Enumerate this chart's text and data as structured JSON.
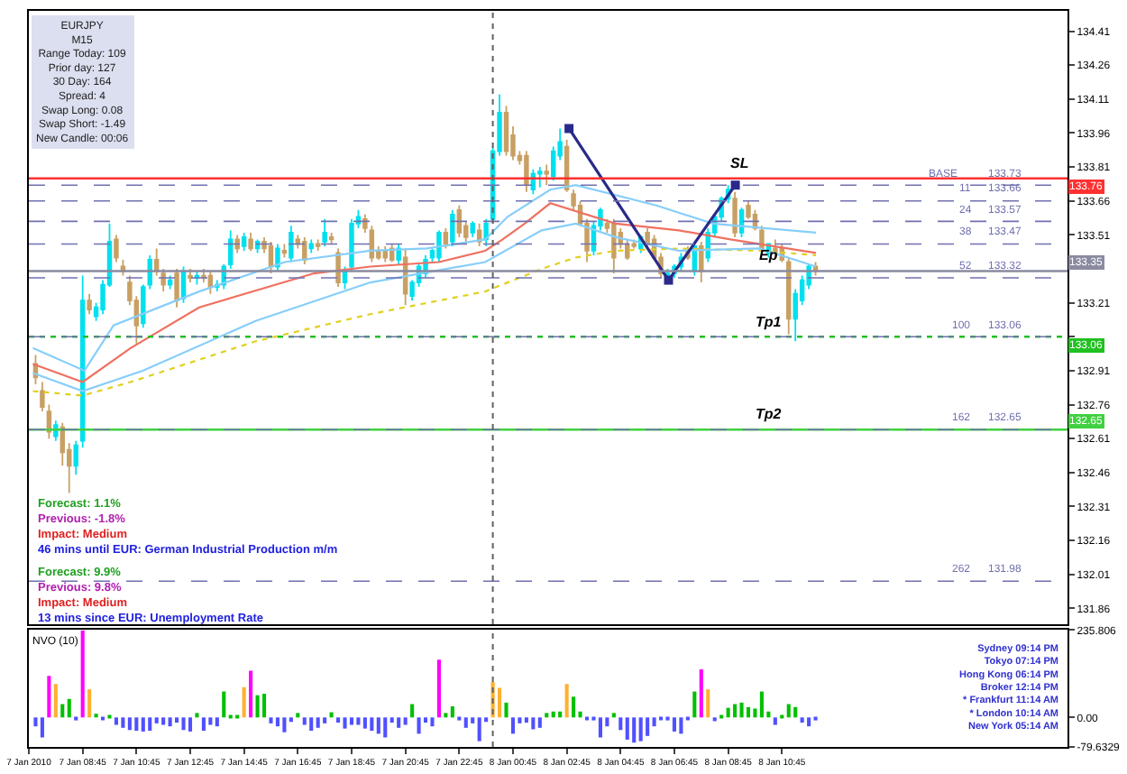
{
  "chart_data": [
    {
      "type": "candlestick",
      "x": [
        "2010-01-07T07:00",
        "2010-01-07T07:15",
        "2010-01-07T07:30",
        "2010-01-07T07:45",
        "2010-01-07T08:00",
        "2010-01-07T08:15",
        "2010-01-07T08:30",
        "2010-01-07T08:45",
        "2010-01-07T09:00",
        "2010-01-07T09:15",
        "2010-01-07T09:30",
        "2010-01-07T09:45",
        "2010-01-07T10:00",
        "2010-01-07T10:15",
        "2010-01-07T10:30",
        "2010-01-07T10:45",
        "2010-01-07T11:00",
        "2010-01-07T11:15",
        "2010-01-07T11:30",
        "2010-01-07T11:45",
        "2010-01-07T12:00",
        "2010-01-07T12:15",
        "2010-01-07T12:30",
        "2010-01-07T12:45",
        "2010-01-07T13:00",
        "2010-01-07T13:15",
        "2010-01-07T13:30",
        "2010-01-07T13:45",
        "2010-01-07T14:00",
        "2010-01-07T14:15",
        "2010-01-07T14:30",
        "2010-01-07T14:45",
        "2010-01-07T15:00",
        "2010-01-07T15:15",
        "2010-01-07T15:30",
        "2010-01-07T15:45",
        "2010-01-07T16:00",
        "2010-01-07T16:15",
        "2010-01-07T16:30",
        "2010-01-07T16:45",
        "2010-01-07T17:00",
        "2010-01-07T17:15",
        "2010-01-07T17:30",
        "2010-01-07T17:45",
        "2010-01-07T18:00",
        "2010-01-07T18:15",
        "2010-01-07T18:30",
        "2010-01-07T18:45",
        "2010-01-07T19:00",
        "2010-01-07T19:15",
        "2010-01-07T19:30",
        "2010-01-07T19:45",
        "2010-01-07T20:00",
        "2010-01-07T20:15",
        "2010-01-07T20:30",
        "2010-01-07T20:45",
        "2010-01-07T21:00",
        "2010-01-07T21:15",
        "2010-01-07T21:30",
        "2010-01-07T21:45",
        "2010-01-07T22:00",
        "2010-01-07T22:15",
        "2010-01-07T22:30",
        "2010-01-07T22:45",
        "2010-01-07T23:00",
        "2010-01-07T23:15",
        "2010-01-07T23:30",
        "2010-01-07T23:45",
        "2010-01-08T00:00",
        "2010-01-08T00:15",
        "2010-01-08T00:30",
        "2010-01-08T00:45",
        "2010-01-08T01:00",
        "2010-01-08T01:15",
        "2010-01-08T01:30",
        "2010-01-08T01:45",
        "2010-01-08T02:00",
        "2010-01-08T02:15",
        "2010-01-08T02:30",
        "2010-01-08T02:45",
        "2010-01-08T03:00",
        "2010-01-08T03:15",
        "2010-01-08T03:30",
        "2010-01-08T03:45",
        "2010-01-08T04:00",
        "2010-01-08T04:15",
        "2010-01-08T04:30",
        "2010-01-08T04:45",
        "2010-01-08T05:00",
        "2010-01-08T05:15",
        "2010-01-08T05:30",
        "2010-01-08T05:45",
        "2010-01-08T06:00",
        "2010-01-08T06:15",
        "2010-01-08T06:30",
        "2010-01-08T06:45",
        "2010-01-08T07:00",
        "2010-01-08T07:15",
        "2010-01-08T07:30",
        "2010-01-08T07:45",
        "2010-01-08T08:00",
        "2010-01-08T08:15",
        "2010-01-08T08:30",
        "2010-01-08T08:45",
        "2010-01-08T09:00",
        "2010-01-08T09:15",
        "2010-01-08T09:30",
        "2010-01-08T09:45",
        "2010-01-08T10:00",
        "2010-01-08T10:15",
        "2010-01-08T10:30",
        "2010-01-08T10:45",
        "2010-01-08T11:00",
        "2010-01-08T11:15",
        "2010-01-08T11:30",
        "2010-01-08T11:45",
        "2010-01-08T12:00"
      ],
      "ohlc": [
        [
          132.94,
          132.98,
          132.85,
          132.88
        ],
        [
          132.82,
          132.86,
          132.73,
          132.75
        ],
        [
          132.73,
          132.76,
          132.61,
          132.64
        ],
        [
          132.62,
          132.69,
          132.6,
          132.67
        ],
        [
          132.66,
          132.68,
          132.49,
          132.55
        ],
        [
          132.56,
          132.59,
          132.37,
          132.49
        ],
        [
          132.49,
          132.6,
          132.45,
          132.58
        ],
        [
          132.6,
          133.33,
          132.57,
          133.22
        ],
        [
          133.22,
          133.25,
          133.16,
          133.18
        ],
        [
          133.15,
          133.21,
          133.13,
          133.19
        ],
        [
          133.18,
          133.31,
          133.16,
          133.29
        ],
        [
          133.29,
          133.56,
          133.28,
          133.48
        ],
        [
          133.49,
          133.51,
          133.39,
          133.41
        ],
        [
          133.37,
          133.4,
          133.33,
          133.35
        ],
        [
          133.3,
          133.33,
          133.2,
          133.22
        ],
        [
          133.22,
          133.24,
          133.03,
          133.11
        ],
        [
          133.12,
          133.29,
          133.1,
          133.28
        ],
        [
          133.29,
          133.42,
          133.27,
          133.4
        ],
        [
          133.4,
          133.45,
          133.33,
          133.35
        ],
        [
          133.34,
          133.36,
          133.26,
          133.29
        ],
        [
          133.29,
          133.33,
          133.27,
          133.31
        ],
        [
          133.34,
          133.36,
          133.19,
          133.22
        ],
        [
          133.23,
          133.37,
          133.21,
          133.35
        ],
        [
          133.33,
          133.36,
          133.3,
          133.32
        ],
        [
          133.32,
          133.35,
          133.29,
          133.33
        ],
        [
          133.33,
          133.36,
          133.3,
          133.32
        ],
        [
          133.33,
          133.35,
          133.25,
          133.28
        ],
        [
          133.28,
          133.31,
          133.26,
          133.29
        ],
        [
          133.29,
          133.38,
          133.27,
          133.37
        ],
        [
          133.38,
          133.53,
          133.36,
          133.49
        ],
        [
          133.49,
          133.51,
          133.43,
          133.45
        ],
        [
          133.46,
          133.52,
          133.44,
          133.5
        ],
        [
          133.49,
          133.52,
          133.44,
          133.45
        ],
        [
          133.45,
          133.49,
          133.43,
          133.48
        ],
        [
          133.48,
          133.5,
          133.43,
          133.45
        ],
        [
          133.46,
          133.48,
          133.34,
          133.37
        ],
        [
          133.37,
          133.47,
          133.35,
          133.45
        ],
        [
          133.44,
          133.47,
          133.41,
          133.43
        ],
        [
          133.41,
          133.55,
          133.39,
          133.52
        ],
        [
          133.49,
          133.51,
          133.45,
          133.47
        ],
        [
          133.48,
          133.5,
          133.38,
          133.4
        ],
        [
          133.45,
          133.49,
          133.43,
          133.47
        ],
        [
          133.47,
          133.49,
          133.44,
          133.46
        ],
        [
          133.48,
          133.58,
          133.46,
          133.52
        ],
        [
          133.5,
          133.52,
          133.47,
          133.49
        ],
        [
          133.43,
          133.45,
          133.28,
          133.3
        ],
        [
          133.3,
          133.37,
          133.27,
          133.35
        ],
        [
          133.37,
          133.58,
          133.35,
          133.56
        ],
        [
          133.56,
          133.62,
          133.54,
          133.59
        ],
        [
          133.58,
          133.6,
          133.52,
          133.54
        ],
        [
          133.53,
          133.55,
          133.39,
          133.41
        ],
        [
          133.44,
          133.46,
          133.4,
          133.41
        ],
        [
          133.44,
          133.46,
          133.39,
          133.41
        ],
        [
          133.45,
          133.47,
          133.39,
          133.4
        ],
        [
          133.4,
          133.47,
          133.38,
          133.45
        ],
        [
          133.41,
          133.45,
          133.2,
          133.25
        ],
        [
          133.24,
          133.31,
          133.22,
          133.3
        ],
        [
          133.3,
          133.38,
          133.28,
          133.37
        ],
        [
          133.34,
          133.42,
          133.32,
          133.4
        ],
        [
          133.41,
          133.45,
          133.39,
          133.44
        ],
        [
          133.41,
          133.53,
          133.39,
          133.52
        ],
        [
          133.52,
          133.54,
          133.45,
          133.47
        ],
        [
          133.48,
          133.62,
          133.46,
          133.6
        ],
        [
          133.62,
          133.64,
          133.5,
          133.52
        ],
        [
          133.55,
          133.57,
          133.48,
          133.5
        ],
        [
          133.52,
          133.57,
          133.5,
          133.56
        ],
        [
          133.53,
          133.56,
          133.46,
          133.48
        ],
        [
          133.49,
          133.58,
          133.46,
          133.56
        ],
        [
          133.58,
          133.9,
          133.56,
          133.88
        ],
        [
          133.88,
          134.13,
          133.86,
          134.05
        ],
        [
          134.05,
          134.08,
          133.86,
          133.88
        ],
        [
          133.95,
          133.99,
          133.84,
          133.86
        ],
        [
          133.86,
          133.88,
          133.82,
          133.84
        ],
        [
          133.86,
          133.88,
          133.7,
          133.73
        ],
        [
          133.71,
          133.8,
          133.69,
          133.78
        ],
        [
          133.78,
          133.81,
          133.72,
          133.79
        ],
        [
          133.79,
          133.82,
          133.73,
          133.78
        ],
        [
          133.77,
          133.9,
          133.75,
          133.88
        ],
        [
          133.86,
          133.98,
          133.84,
          133.92
        ],
        [
          133.9,
          133.93,
          133.7,
          133.71
        ],
        [
          133.69,
          133.71,
          133.62,
          133.64
        ],
        [
          133.64,
          133.66,
          133.55,
          133.56
        ],
        [
          133.56,
          133.58,
          133.39,
          133.44
        ],
        [
          133.44,
          133.57,
          133.42,
          133.55
        ],
        [
          133.55,
          133.63,
          133.53,
          133.62
        ],
        [
          133.56,
          133.58,
          133.52,
          133.54
        ],
        [
          133.56,
          133.58,
          133.34,
          133.41
        ],
        [
          133.52,
          133.54,
          133.45,
          133.47
        ],
        [
          133.47,
          133.49,
          133.4,
          133.41
        ],
        [
          133.47,
          133.49,
          133.45,
          133.46
        ],
        [
          133.45,
          133.51,
          133.43,
          133.5
        ],
        [
          133.52,
          133.54,
          133.45,
          133.47
        ],
        [
          133.49,
          133.51,
          133.4,
          133.41
        ],
        [
          133.41,
          133.43,
          133.32,
          133.34
        ],
        [
          133.32,
          133.36,
          133.31,
          133.34
        ],
        [
          133.34,
          133.38,
          133.32,
          133.37
        ],
        [
          133.37,
          133.43,
          133.35,
          133.41
        ],
        [
          133.44,
          133.46,
          133.4,
          133.41
        ],
        [
          133.35,
          133.47,
          133.33,
          133.46
        ],
        [
          133.46,
          133.48,
          133.3,
          133.35
        ],
        [
          133.41,
          133.54,
          133.39,
          133.52
        ],
        [
          133.52,
          133.6,
          133.5,
          133.59
        ],
        [
          133.59,
          133.68,
          133.57,
          133.67
        ],
        [
          133.67,
          133.73,
          133.65,
          133.71
        ],
        [
          133.67,
          133.7,
          133.5,
          133.52
        ],
        [
          133.52,
          133.63,
          133.5,
          133.62
        ],
        [
          133.64,
          133.66,
          133.58,
          133.59
        ],
        [
          133.6,
          133.62,
          133.53,
          133.54
        ],
        [
          133.53,
          133.55,
          133.43,
          133.45
        ],
        [
          133.43,
          133.47,
          133.41,
          133.47
        ],
        [
          133.45,
          133.49,
          133.41,
          133.43
        ],
        [
          133.45,
          133.47,
          133.39,
          133.4
        ],
        [
          133.39,
          133.41,
          133.07,
          133.14
        ],
        [
          133.14,
          133.27,
          133.04,
          133.25
        ],
        [
          133.22,
          133.33,
          133.2,
          133.31
        ],
        [
          133.29,
          133.38,
          133.27,
          133.37
        ],
        [
          133.37,
          133.39,
          133.33,
          133.35
        ]
      ],
      "colors": [
        "#c8a064",
        "#c8a064",
        "#c8a064",
        "#00e0ee",
        "#c8a064",
        "#c8a064",
        "#00e0ee",
        "#00e0ee",
        "#c8a064",
        "#00e0ee",
        "#00e0ee",
        "#00e0ee",
        "#c8a064",
        "#c8a064",
        "#c8a064",
        "#c8a064",
        "#00e0ee",
        "#00e0ee",
        "#c8a064",
        "#c8a064",
        "#00e0ee",
        "#c8a064",
        "#00e0ee",
        "#c8a064",
        "#00e0ee",
        "#c8a064",
        "#c8a064",
        "#00e0ee",
        "#00e0ee",
        "#00e0ee",
        "#c8a064",
        "#00e0ee",
        "#c8a064",
        "#00e0ee",
        "#c8a064",
        "#c8a064",
        "#00e0ee",
        "#c8a064",
        "#00e0ee",
        "#c8a064",
        "#c8a064",
        "#00e0ee",
        "#c8a064",
        "#00e0ee",
        "#c8a064",
        "#c8a064",
        "#00e0ee",
        "#00e0ee",
        "#00e0ee",
        "#c8a064",
        "#c8a064",
        "#c8a064",
        "#c8a064",
        "#c8a064",
        "#00e0ee",
        "#c8a064",
        "#00e0ee",
        "#00e0ee",
        "#00e0ee",
        "#00e0ee",
        "#00e0ee",
        "#c8a064",
        "#00e0ee",
        "#c8a064",
        "#c8a064",
        "#00e0ee",
        "#c8a064",
        "#00e0ee",
        "#00e0ee",
        "#00e0ee",
        "#c8a064",
        "#c8a064",
        "#c8a064",
        "#c8a064",
        "#00e0ee",
        "#00e0ee",
        "#c8a064",
        "#00e0ee",
        "#00e0ee",
        "#c8a064",
        "#c8a064",
        "#c8a064",
        "#c8a064",
        "#00e0ee",
        "#00e0ee",
        "#c8a064",
        "#c8a064",
        "#c8a064",
        "#c8a064",
        "#c8a064",
        "#00e0ee",
        "#c8a064",
        "#c8a064",
        "#c8a064",
        "#00e0ee",
        "#00e0ee",
        "#00e0ee",
        "#c8a064",
        "#00e0ee",
        "#c8a064",
        "#00e0ee",
        "#00e0ee",
        "#00e0ee",
        "#00e0ee",
        "#c8a064",
        "#00e0ee",
        "#c8a064",
        "#c8a064",
        "#c8a064",
        "#00e0ee",
        "#c8a064",
        "#c8a064",
        "#c8a064",
        "#00e0ee",
        "#00e0ee",
        "#00e0ee",
        "#c8a064"
      ],
      "series": [
        {
          "type": "line",
          "color": "#e0d020",
          "line_style": "dotted",
          "marker": "none",
          "x": [
            "2010-01-07T06:54",
            "2010-01-07T08:45",
            "2010-01-07T10:32",
            "2010-01-07T15:11",
            "2010-01-07T19:27",
            "2010-01-07T23:43",
            "2010-01-08T01:49",
            "2010-01-08T03:05",
            "2010-01-08T04:34",
            "2010-01-08T06:55",
            "2010-01-08T09:55",
            "2010-01-08T12:01"
          ],
          "values": [
            132.82,
            132.8,
            132.86,
            133.04,
            133.16,
            133.26,
            133.36,
            133.41,
            133.44,
            133.45,
            133.44,
            133.42
          ]
        },
        {
          "type": "line",
          "color": "#87cefa",
          "line_style": "solid",
          "marker": "none",
          "x": [
            "2010-01-07T06:54",
            "2010-01-07T08:45",
            "2010-01-07T10:59",
            "2010-01-07T15:11",
            "2010-01-07T19:27",
            "2010-01-07T23:43",
            "2010-01-08T01:49",
            "2010-01-08T03:05",
            "2010-01-08T04:34",
            "2010-01-08T06:55",
            "2010-01-08T09:55",
            "2010-01-08T12:01"
          ],
          "values": [
            132.9,
            132.82,
            132.91,
            133.13,
            133.3,
            133.39,
            133.53,
            133.56,
            133.5,
            133.44,
            133.45,
            133.37
          ]
        },
        {
          "type": "line",
          "color": "#f07060",
          "line_style": "solid",
          "marker": "none",
          "x": [
            "2010-01-07T06:54",
            "2010-01-07T08:45",
            "2010-01-07T10:32",
            "2010-01-07T13:05",
            "2010-01-07T17:21",
            "2010-01-07T19:27",
            "2010-01-07T22:00",
            "2010-01-07T23:43",
            "2010-01-08T00:22",
            "2010-01-08T01:11",
            "2010-01-08T02:08",
            "2010-01-08T04:34",
            "2010-01-08T06:55",
            "2010-01-08T08:50",
            "2010-01-08T12:01"
          ],
          "values": [
            132.94,
            132.86,
            133.01,
            133.19,
            133.34,
            133.37,
            133.39,
            133.44,
            133.49,
            133.56,
            133.65,
            133.56,
            133.53,
            133.49,
            133.43
          ]
        },
        {
          "type": "line",
          "color": "#87cefa",
          "line_style": "solid",
          "marker": "none",
          "x": [
            "2010-01-07T06:54",
            "2010-01-07T08:49",
            "2010-01-07T09:54",
            "2010-01-07T13:05",
            "2010-01-07T16:16",
            "2010-01-07T19:27",
            "2010-01-07T21:33",
            "2010-01-07T23:43",
            "2010-01-08T00:33",
            "2010-01-08T02:08",
            "2010-01-08T03:05",
            "2010-01-08T06:05",
            "2010-01-08T08:11",
            "2010-01-08T12:01"
          ],
          "values": [
            133.01,
            132.91,
            133.11,
            133.26,
            133.39,
            133.44,
            133.45,
            133.49,
            133.59,
            133.71,
            133.73,
            133.64,
            133.56,
            133.52
          ]
        },
        {
          "type": "line",
          "color": "#2a2a8a",
          "line_style": "solid",
          "marker": "square",
          "x": [
            "2010-01-08T02:50",
            "2010-01-08T06:32",
            "2010-01-08T09:01"
          ],
          "values": [
            133.98,
            133.31,
            133.73
          ]
        }
      ],
      "xlim": [
        "2010-01-07T06:45",
        "2010-01-08T21:22"
      ],
      "ylim": [
        131.79,
        134.5
      ],
      "yticks": [
        134.41,
        134.26,
        134.11,
        133.96,
        133.81,
        133.66,
        133.51,
        {
          "value": 133.36,
          "label": null
        },
        133.21,
        {
          "value": 133.06,
          "label": null
        },
        132.91,
        132.76,
        132.61,
        132.46,
        132.31,
        132.16,
        132.01,
        131.86
      ],
      "tick_labels": "y",
      "ref_lines": [
        {
          "axis": "y",
          "value": 133.76,
          "label": "133.76",
          "color": "#ff3030",
          "line_style": "solid"
        },
        {
          "axis": "y",
          "value": 133.35,
          "label": "133.35",
          "color": "#8a8aa0",
          "line_style": "solid"
        },
        {
          "axis": "y",
          "value": 133.06,
          "label": "133.06",
          "color": "#20c020",
          "line_style": "dotted"
        },
        {
          "axis": "y",
          "value": 132.65,
          "label": "132.65",
          "color": "#40d040",
          "line_style": "solid"
        },
        {
          "axis": "y",
          "value": 133.73,
          "label": "133.73",
          "color": "#7070b0",
          "line_style": "dashed"
        },
        {
          "axis": "y",
          "value": 133.66,
          "label": "133.66",
          "color": "#7070b0",
          "line_style": "dashed"
        },
        {
          "axis": "y",
          "value": 133.57,
          "label": "133.57",
          "color": "#7070b0",
          "line_style": "dashed"
        },
        {
          "axis": "y",
          "value": 133.47,
          "label": "133.47",
          "color": "#7070b0",
          "line_style": "dashed"
        },
        {
          "axis": "y",
          "value": 133.32,
          "label": "133.32",
          "color": "#7070b0",
          "line_style": "dashed"
        },
        {
          "axis": "y",
          "value": 133.06,
          "label": "133.06",
          "color": "#7070b0",
          "line_style": "dashed"
        },
        {
          "axis": "y",
          "value": 132.65,
          "label": "132.65",
          "color": "#7070b0",
          "line_style": "dashed"
        },
        {
          "axis": "y",
          "value": 131.98,
          "label": "131.98",
          "color": "#7070b0",
          "line_style": "dashed"
        },
        {
          "axis": "x",
          "value": "2010-01-08T00:00",
          "color": "#606060",
          "line_style": "dotted"
        }
      ],
      "annotations": [
        "EURJPY\nM15\nRange Today: 109\nPrior day: 127\n30 Day: 164\nSpread: 4\nSwap Long: 0.08\nSwap Short: -1.49\nNew Candle: 00:06",
        "Forecast: 1.1%\nPrevious: -1.8%\nImpact: Medium\n46 mins until EUR: German Industrial Production m/m",
        "Forecast: 9.9%\nPrevious: 9.8%\nImpact: Medium\n13 mins since EUR: Unemployment Rate",
        {
          "text": "SL",
          "x": "2010-01-08T09:08",
          "y": 133.76
        },
        {
          "text": "Ep",
          "x": "2010-01-08T10:14",
          "y": 133.35
        },
        {
          "text": "Tp1",
          "x": "2010-01-08T10:17",
          "y": 133.06
        },
        {
          "text": "Tp2",
          "x": "2010-01-08T10:17",
          "y": 132.65
        },
        {
          "text": "BASE",
          "x": "2010-01-08T17:24",
          "y": 133.73
        },
        {
          "text": "11",
          "x": "2010-01-08T17:56",
          "y": 133.66
        },
        {
          "text": "24",
          "x": "2010-01-08T17:56",
          "y": 133.57
        },
        {
          "text": "38",
          "x": "2010-01-08T17:56",
          "y": 133.47
        },
        {
          "text": "52",
          "x": "2010-01-08T17:56",
          "y": 133.32
        },
        {
          "text": "100",
          "x": "2010-01-08T17:56",
          "y": 133.06
        },
        {
          "text": "162",
          "x": "2010-01-08T17:56",
          "y": 132.65
        },
        {
          "text": "262",
          "x": "2010-01-08T17:56",
          "y": 131.98
        }
      ]
    },
    {
      "type": "bar",
      "title": "NVO (10)",
      "x": [
        "2010-01-07T07:00",
        "2010-01-07T07:15",
        "2010-01-07T07:30",
        "2010-01-07T07:45",
        "2010-01-07T08:00",
        "2010-01-07T08:15",
        "2010-01-07T08:30",
        "2010-01-07T08:45",
        "2010-01-07T09:00",
        "2010-01-07T09:15",
        "2010-01-07T09:30",
        "2010-01-07T09:45",
        "2010-01-07T10:00",
        "2010-01-07T10:15",
        "2010-01-07T10:30",
        "2010-01-07T10:45",
        "2010-01-07T11:00",
        "2010-01-07T11:15",
        "2010-01-07T11:30",
        "2010-01-07T11:45",
        "2010-01-07T12:00",
        "2010-01-07T12:15",
        "2010-01-07T12:30",
        "2010-01-07T12:45",
        "2010-01-07T13:00",
        "2010-01-07T13:15",
        "2010-01-07T13:30",
        "2010-01-07T13:45",
        "2010-01-07T14:00",
        "2010-01-07T14:15",
        "2010-01-07T14:30",
        "2010-01-07T14:45",
        "2010-01-07T15:00",
        "2010-01-07T15:15",
        "2010-01-07T15:30",
        "2010-01-07T15:45",
        "2010-01-07T16:00",
        "2010-01-07T16:15",
        "2010-01-07T16:30",
        "2010-01-07T16:45",
        "2010-01-07T17:00",
        "2010-01-07T17:15",
        "2010-01-07T17:30",
        "2010-01-07T17:45",
        "2010-01-07T18:00",
        "2010-01-07T18:15",
        "2010-01-07T18:30",
        "2010-01-07T18:45",
        "2010-01-07T19:00",
        "2010-01-07T19:15",
        "2010-01-07T19:30",
        "2010-01-07T19:45",
        "2010-01-07T20:00",
        "2010-01-07T20:15",
        "2010-01-07T20:30",
        "2010-01-07T20:45",
        "2010-01-07T21:00",
        "2010-01-07T21:15",
        "2010-01-07T21:30",
        "2010-01-07T21:45",
        "2010-01-07T22:00",
        "2010-01-07T22:15",
        "2010-01-07T22:30",
        "2010-01-07T22:45",
        "2010-01-07T23:00",
        "2010-01-07T23:15",
        "2010-01-07T23:30",
        "2010-01-07T23:45",
        "2010-01-08T00:00",
        "2010-01-08T00:15",
        "2010-01-08T00:30",
        "2010-01-08T00:45",
        "2010-01-08T01:00",
        "2010-01-08T01:15",
        "2010-01-08T01:30",
        "2010-01-08T01:45",
        "2010-01-08T02:00",
        "2010-01-08T02:15",
        "2010-01-08T02:30",
        "2010-01-08T02:45",
        "2010-01-08T03:00",
        "2010-01-08T03:15",
        "2010-01-08T03:30",
        "2010-01-08T03:45",
        "2010-01-08T04:00",
        "2010-01-08T04:15",
        "2010-01-08T04:30",
        "2010-01-08T04:45",
        "2010-01-08T05:00",
        "2010-01-08T05:15",
        "2010-01-08T05:30",
        "2010-01-08T05:45",
        "2010-01-08T06:00",
        "2010-01-08T06:15",
        "2010-01-08T06:30",
        "2010-01-08T06:45",
        "2010-01-08T07:00",
        "2010-01-08T07:15",
        "2010-01-08T07:30",
        "2010-01-08T07:45",
        "2010-01-08T08:00",
        "2010-01-08T08:15",
        "2010-01-08T08:30",
        "2010-01-08T08:45",
        "2010-01-08T09:00",
        "2010-01-08T09:15",
        "2010-01-08T09:30",
        "2010-01-08T09:45",
        "2010-01-08T10:00",
        "2010-01-08T10:15",
        "2010-01-08T10:30",
        "2010-01-08T10:45",
        "2010-01-08T11:00",
        "2010-01-08T11:15",
        "2010-01-08T11:30",
        "2010-01-08T11:45",
        "2010-01-08T12:00"
      ],
      "values": [
        -24,
        -54,
        112,
        90,
        36,
        50,
        -8,
        235,
        76,
        10,
        -4,
        4,
        -20,
        -28,
        -34,
        -36,
        -38,
        -36,
        -16,
        -20,
        -24,
        -14,
        -34,
        -38,
        12,
        -36,
        -20,
        -24,
        70,
        6,
        4,
        82,
        126,
        60,
        64,
        -16,
        -24,
        -40,
        -12,
        12,
        -20,
        -36,
        -28,
        -16,
        14,
        -14,
        -30,
        -20,
        -20,
        -30,
        -36,
        -44,
        -54,
        -14,
        -28,
        -20,
        36,
        -44,
        -14,
        -24,
        156,
        12,
        30,
        -8,
        -28,
        -16,
        -64,
        -12,
        96,
        80,
        40,
        -44,
        -16,
        -14,
        -32,
        -28,
        12,
        16,
        16,
        90,
        56,
        16,
        -4,
        -8,
        -54,
        -24,
        12,
        -34,
        -60,
        -68,
        -64,
        -50,
        -24,
        -4,
        -8,
        -38,
        -44,
        -4,
        70,
        130,
        76,
        -10,
        6,
        26,
        36,
        40,
        28,
        24,
        70,
        16,
        -20,
        4,
        36,
        28,
        -14,
        -24,
        -8
      ],
      "colors": [
        "#5050ff",
        "#5050ff",
        "#ff00ff",
        "#ffb030",
        "#00c000",
        "#00c000",
        "#5050ff",
        "#ff00ff",
        "#ffb030",
        "#00c000",
        "#5050ff",
        "#00c000",
        "#5050ff",
        "#5050ff",
        "#5050ff",
        "#5050ff",
        "#5050ff",
        "#5050ff",
        "#5050ff",
        "#5050ff",
        "#5050ff",
        "#5050ff",
        "#5050ff",
        "#5050ff",
        "#00c000",
        "#5050ff",
        "#5050ff",
        "#5050ff",
        "#00c000",
        "#00c000",
        "#00c000",
        "#ffb030",
        "#ff00ff",
        "#00c000",
        "#00c000",
        "#5050ff",
        "#5050ff",
        "#5050ff",
        "#5050ff",
        "#00c000",
        "#5050ff",
        "#5050ff",
        "#5050ff",
        "#5050ff",
        "#00c000",
        "#5050ff",
        "#5050ff",
        "#5050ff",
        "#5050ff",
        "#5050ff",
        "#5050ff",
        "#5050ff",
        "#5050ff",
        "#5050ff",
        "#5050ff",
        "#5050ff",
        "#00c000",
        "#5050ff",
        "#5050ff",
        "#5050ff",
        "#ff00ff",
        "#00c000",
        "#00c000",
        "#5050ff",
        "#5050ff",
        "#5050ff",
        "#5050ff",
        "#5050ff",
        "#ffb030",
        "#ffb030",
        "#00c000",
        "#5050ff",
        "#5050ff",
        "#5050ff",
        "#5050ff",
        "#5050ff",
        "#00c000",
        "#00c000",
        "#00c000",
        "#ffb030",
        "#00c000",
        "#00c000",
        "#5050ff",
        "#5050ff",
        "#5050ff",
        "#5050ff",
        "#00c000",
        "#5050ff",
        "#5050ff",
        "#5050ff",
        "#5050ff",
        "#5050ff",
        "#5050ff",
        "#5050ff",
        "#5050ff",
        "#5050ff",
        "#5050ff",
        "#5050ff",
        "#00c000",
        "#ff00ff",
        "#ffb030",
        "#5050ff",
        "#00c000",
        "#00c000",
        "#00c000",
        "#00c000",
        "#00c000",
        "#00c000",
        "#00c000",
        "#00c000",
        "#5050ff",
        "#00c000",
        "#00c000",
        "#00c000",
        "#5050ff",
        "#5050ff",
        "#5050ff"
      ],
      "xlim": [
        "2010-01-07T06:45",
        "2010-01-08T21:22"
      ],
      "xticks": [
        {
          "value": "2010-01-07T06:45",
          "label": "7 Jan 2010"
        },
        {
          "value": "2010-01-07T08:45",
          "label": "7 Jan 08:45"
        },
        {
          "value": "2010-01-07T10:45",
          "label": "7 Jan 10:45"
        },
        {
          "value": "2010-01-07T12:45",
          "label": "7 Jan 12:45"
        },
        {
          "value": "2010-01-07T14:45",
          "label": "7 Jan 14:45"
        },
        {
          "value": "2010-01-07T16:45",
          "label": "7 Jan 16:45"
        },
        {
          "value": "2010-01-07T18:45",
          "label": "7 Jan 18:45"
        },
        {
          "value": "2010-01-07T20:45",
          "label": "7 Jan 20:45"
        },
        {
          "value": "2010-01-07T22:45",
          "label": "7 Jan 22:45"
        },
        {
          "value": "2010-01-08T00:45",
          "label": "8 Jan 00:45"
        },
        {
          "value": "2010-01-08T02:45",
          "label": "8 Jan 02:45"
        },
        {
          "value": "2010-01-08T04:45",
          "label": "8 Jan 04:45"
        },
        {
          "value": "2010-01-08T06:45",
          "label": "8 Jan 06:45"
        },
        {
          "value": "2010-01-08T08:45",
          "label": "8 Jan 08:45"
        },
        {
          "value": "2010-01-08T10:45",
          "label": "8 Jan 10:45"
        }
      ],
      "ylim": [
        -79.6329,
        235.806
      ],
      "yticks": [
        235.806,
        {
          "value": 0,
          "label": "0.00"
        },
        -79.6329
      ],
      "ref_lines": [
        {
          "axis": "x",
          "value": "2010-01-08T00:00",
          "color": "#606060",
          "line_style": "dotted"
        }
      ],
      "annotations": [
        "Sydney 09:14 PM\nTokyo 07:14 PM\nHong Kong 06:14 PM\nBroker 12:14 PM\n* Frankfurt 11:14 AM\n* London 10:14 AM\nNew York 05:14 AM"
      ]
    }
  ]
}
